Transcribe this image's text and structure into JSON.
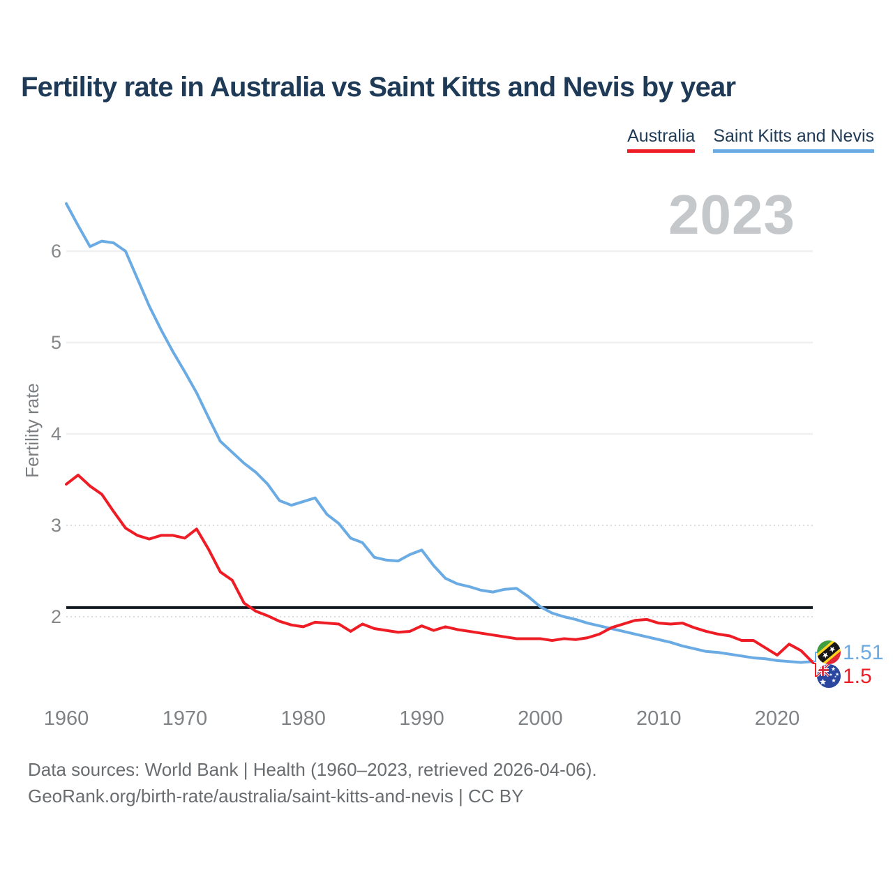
{
  "header": {
    "title": "Fertility rate in Australia vs Saint Kitts and Nevis by year",
    "title_color": "#1e3a56"
  },
  "legend": {
    "items": [
      {
        "label": "Australia",
        "color": "#ee1d25"
      },
      {
        "label": "Saint Kitts and Nevis",
        "color": "#6babe4"
      }
    ]
  },
  "watermark": {
    "text": "2023",
    "color": "#c5c8ca"
  },
  "end_labels": [
    {
      "series": "Saint Kitts and Nevis",
      "value": "1.51",
      "color": "#6babe4",
      "flag_icon": "saint-kitts-and-nevis-flag-icon"
    },
    {
      "series": "Australia",
      "value": "1.5",
      "color": "#ee1d25",
      "flag_icon": "australia-flag-icon"
    }
  ],
  "footer": {
    "line1": "Data sources: World Bank | Health (1960–2023, retrieved 2026-04-06).",
    "line2": "GeoRank.org/birth-rate/australia/saint-kitts-and-nevis | CC BY",
    "color": "#6a6d70"
  },
  "chart_data": {
    "type": "line",
    "title": "Fertility rate in Australia vs Saint Kitts and Nevis by year",
    "xlabel": "",
    "ylabel": "Fertility rate",
    "grid": "horizontal",
    "legend_position": "top-right",
    "x_range": [
      1960,
      2023
    ],
    "ylim": [
      1.4,
      6.6
    ],
    "x": [
      1960,
      1961,
      1962,
      1963,
      1964,
      1965,
      1966,
      1967,
      1968,
      1969,
      1970,
      1971,
      1972,
      1973,
      1974,
      1975,
      1976,
      1977,
      1978,
      1979,
      1980,
      1981,
      1982,
      1983,
      1984,
      1985,
      1986,
      1987,
      1988,
      1989,
      1990,
      1991,
      1992,
      1993,
      1994,
      1995,
      1996,
      1997,
      1998,
      1999,
      2000,
      2001,
      2002,
      2003,
      2004,
      2005,
      2006,
      2007,
      2008,
      2009,
      2010,
      2011,
      2012,
      2013,
      2014,
      2015,
      2016,
      2017,
      2018,
      2019,
      2020,
      2021,
      2022,
      2023
    ],
    "series": [
      {
        "name": "Australia",
        "color": "#ee1d25",
        "values": [
          3.45,
          3.55,
          3.43,
          3.34,
          3.15,
          2.97,
          2.89,
          2.85,
          2.89,
          2.89,
          2.86,
          2.96,
          2.74,
          2.49,
          2.4,
          2.15,
          2.06,
          2.01,
          1.95,
          1.91,
          1.89,
          1.94,
          1.93,
          1.92,
          1.84,
          1.92,
          1.87,
          1.85,
          1.83,
          1.84,
          1.9,
          1.85,
          1.89,
          1.86,
          1.84,
          1.82,
          1.8,
          1.78,
          1.76,
          1.76,
          1.76,
          1.74,
          1.76,
          1.75,
          1.77,
          1.81,
          1.88,
          1.92,
          1.96,
          1.97,
          1.93,
          1.92,
          1.93,
          1.88,
          1.84,
          1.81,
          1.79,
          1.74,
          1.74,
          1.66,
          1.58,
          1.7,
          1.63,
          1.5
        ]
      },
      {
        "name": "Saint Kitts and Nevis",
        "color": "#6babe4",
        "values": [
          6.52,
          6.28,
          6.05,
          6.11,
          6.09,
          6.0,
          5.7,
          5.4,
          5.14,
          4.9,
          4.68,
          4.45,
          4.18,
          3.92,
          3.8,
          3.68,
          3.58,
          3.45,
          3.27,
          3.22,
          3.26,
          3.3,
          3.12,
          3.02,
          2.86,
          2.81,
          2.65,
          2.62,
          2.61,
          2.68,
          2.73,
          2.56,
          2.42,
          2.36,
          2.33,
          2.29,
          2.27,
          2.3,
          2.31,
          2.22,
          2.11,
          2.04,
          2.0,
          1.97,
          1.93,
          1.9,
          1.87,
          1.84,
          1.81,
          1.78,
          1.75,
          1.72,
          1.68,
          1.65,
          1.62,
          1.61,
          1.59,
          1.57,
          1.55,
          1.54,
          1.52,
          1.51,
          1.5,
          1.51
        ]
      }
    ],
    "reference_line": {
      "value": 2.1,
      "color": "#10181f"
    },
    "xticks": [
      1960,
      1970,
      1980,
      1990,
      2000,
      2010,
      2020
    ],
    "yticks": [
      {
        "value": 2,
        "style": "dotted"
      },
      {
        "value": 3,
        "style": "dotted"
      },
      {
        "value": 4,
        "style": "solid"
      },
      {
        "value": 5,
        "style": "solid"
      },
      {
        "value": 6,
        "style": "solid"
      }
    ]
  }
}
